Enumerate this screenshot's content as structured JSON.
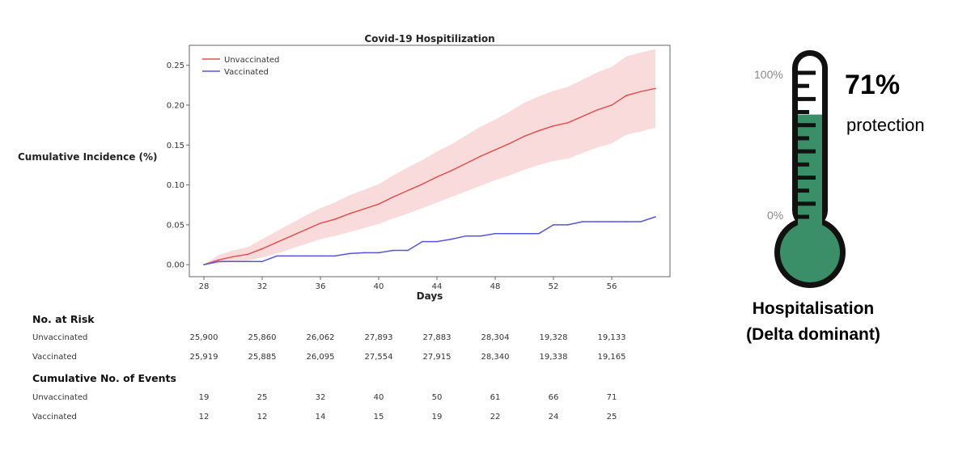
{
  "chart_data": {
    "type": "line",
    "title": "Covid-19 Hospitilization",
    "xlabel": "Days",
    "ylabel": "Cumulative Incidence (%)",
    "xlim": [
      27,
      60
    ],
    "ylim": [
      -0.015,
      0.275
    ],
    "xticks": [
      28,
      32,
      36,
      40,
      44,
      48,
      52,
      56
    ],
    "yticks": [
      0.0,
      0.05,
      0.1,
      0.15,
      0.2,
      0.25
    ],
    "legend": "top-left",
    "grid": false,
    "series": [
      {
        "name": "Unvaccinated",
        "color": "#e05252",
        "band_color": "#f8cccc",
        "x": [
          28,
          29,
          30,
          31,
          32,
          33,
          34,
          35,
          36,
          37,
          38,
          39,
          40,
          41,
          42,
          43,
          44,
          45,
          46,
          47,
          48,
          49,
          50,
          51,
          52,
          53,
          54,
          55,
          56,
          57,
          58,
          59
        ],
        "y": [
          0.0,
          0.006,
          0.01,
          0.013,
          0.02,
          0.028,
          0.036,
          0.044,
          0.052,
          0.057,
          0.064,
          0.07,
          0.076,
          0.085,
          0.093,
          0.101,
          0.11,
          0.118,
          0.127,
          0.136,
          0.144,
          0.152,
          0.161,
          0.168,
          0.174,
          0.178,
          0.186,
          0.194,
          0.2,
          0.212,
          0.217,
          0.221
        ],
        "lower": [
          0.0,
          0.002,
          0.004,
          0.005,
          0.009,
          0.014,
          0.02,
          0.026,
          0.032,
          0.036,
          0.041,
          0.046,
          0.051,
          0.058,
          0.064,
          0.071,
          0.078,
          0.085,
          0.092,
          0.099,
          0.106,
          0.112,
          0.119,
          0.125,
          0.13,
          0.133,
          0.14,
          0.147,
          0.152,
          0.163,
          0.167,
          0.172
        ],
        "upper": [
          0.0,
          0.012,
          0.018,
          0.022,
          0.032,
          0.042,
          0.052,
          0.062,
          0.071,
          0.078,
          0.087,
          0.094,
          0.101,
          0.112,
          0.122,
          0.131,
          0.142,
          0.151,
          0.162,
          0.173,
          0.182,
          0.192,
          0.203,
          0.211,
          0.218,
          0.223,
          0.232,
          0.241,
          0.248,
          0.261,
          0.266,
          0.27
        ]
      },
      {
        "name": "Vaccinated",
        "color": "#5555dd",
        "x": [
          28,
          29,
          30,
          31,
          32,
          33,
          34,
          35,
          36,
          37,
          38,
          39,
          40,
          41,
          42,
          43,
          44,
          45,
          46,
          47,
          48,
          49,
          50,
          51,
          52,
          53,
          54,
          55,
          56,
          57,
          58,
          59
        ],
        "y": [
          0.0,
          0.004,
          0.004,
          0.004,
          0.004,
          0.011,
          0.011,
          0.011,
          0.011,
          0.011,
          0.014,
          0.015,
          0.015,
          0.018,
          0.018,
          0.029,
          0.029,
          0.032,
          0.036,
          0.036,
          0.039,
          0.039,
          0.039,
          0.039,
          0.05,
          0.05,
          0.054,
          0.054,
          0.054,
          0.054,
          0.054,
          0.06
        ]
      }
    ]
  },
  "risk_table": {
    "at_risk_heading": "No. at Risk",
    "events_heading": "Cumulative No. of Events",
    "columns": [
      28,
      32,
      36,
      40,
      44,
      48,
      52,
      56
    ],
    "at_risk_rows": [
      {
        "label": "Unvaccinated",
        "values": [
          "25,900",
          "25,860",
          "26,062",
          "27,893",
          "27,883",
          "28,304",
          "19,328",
          "19,133"
        ]
      },
      {
        "label": "Vaccinated",
        "values": [
          "25,919",
          "25,885",
          "26,095",
          "27,554",
          "27,915",
          "28,340",
          "19,338",
          "19,165"
        ]
      }
    ],
    "events_rows": [
      {
        "label": "Unvaccinated",
        "values": [
          "19",
          "25",
          "32",
          "40",
          "50",
          "61",
          "66",
          "71"
        ]
      },
      {
        "label": "Vaccinated",
        "values": [
          "12",
          "12",
          "14",
          "15",
          "19",
          "22",
          "24",
          "25"
        ]
      }
    ]
  },
  "thermometer": {
    "label_top": "100%",
    "label_bottom": "0%",
    "fill_fraction": 0.71,
    "fill_color": "#3a8f68",
    "outline_color": "#111111",
    "value_text": "71%",
    "value_subtext": "protection",
    "caption_line1": "Hospitalisation",
    "caption_line2": "(Delta dominant)"
  }
}
